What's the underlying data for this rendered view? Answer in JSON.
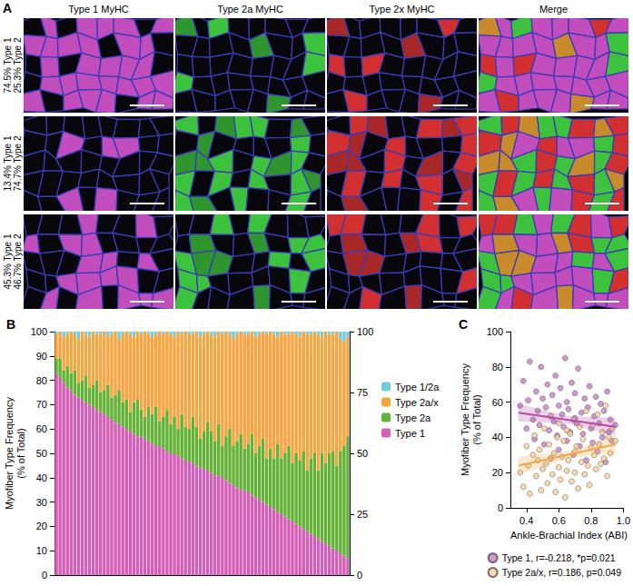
{
  "panel_a": {
    "letter": "A",
    "columns": [
      "Type 1 MyHC",
      "Type 2a MyHC",
      "Type 2x MyHC",
      "Merge"
    ],
    "rows": [
      [
        "74.5% Type 1",
        "25.3% Type 2"
      ],
      [
        "13.4% Type 1",
        "74.7% Type 2"
      ],
      [
        "45.3% Type 1",
        "46.7% Type 2"
      ]
    ]
  },
  "chart_data": [
    {
      "type": "bar",
      "title": "B",
      "y_label": "Myofiber Type Frequency (% of Total)",
      "stacked": true,
      "grid": false,
      "legend": "right",
      "tick_labels": "y",
      "categories": [
        null,
        null,
        null,
        null,
        null,
        null,
        null,
        null,
        null,
        null,
        null,
        null,
        null,
        null,
        null,
        null,
        null,
        null,
        null,
        null,
        null,
        null,
        null,
        null,
        null,
        null,
        null,
        null,
        null,
        null,
        null,
        null,
        null,
        null,
        null,
        null,
        null,
        null,
        null,
        null,
        null,
        null,
        null,
        null,
        null,
        null,
        null,
        null,
        null,
        null,
        null,
        null,
        null,
        null,
        null,
        null,
        null,
        null,
        null,
        null,
        null,
        null,
        null,
        null,
        null,
        null,
        null,
        null,
        null,
        null,
        null,
        null,
        null,
        null,
        null,
        null,
        null,
        null,
        null,
        null
      ],
      "ylim": [
        0,
        100
      ],
      "yticks": [
        0,
        10,
        20,
        30,
        40,
        50,
        60,
        70,
        80,
        90,
        100
      ],
      "y2lim": [
        0,
        100
      ],
      "y2ticks": [
        0,
        25,
        50,
        75,
        100
      ],
      "series": [
        {
          "name": "Type 1",
          "color": "#d35fb7",
          "values": [
            83,
            81,
            79,
            77,
            76,
            74,
            73,
            72,
            71,
            70,
            69,
            68,
            67,
            66,
            65,
            64,
            63,
            62,
            61,
            60,
            59,
            58,
            57,
            57,
            56,
            55,
            54,
            53,
            53,
            52,
            51,
            50,
            50,
            49,
            48,
            47,
            47,
            46,
            45,
            44,
            44,
            43,
            42,
            41,
            41,
            40,
            39,
            38,
            37,
            36,
            35,
            35,
            34,
            33,
            32,
            31,
            30,
            29,
            28,
            27,
            26,
            25,
            24,
            23,
            22,
            21,
            20,
            19,
            18,
            17,
            16,
            15,
            14,
            13,
            12,
            11,
            10,
            9,
            8,
            7
          ]
        },
        {
          "name": "Type 2a",
          "color": "#62b236",
          "values": [
            6,
            8,
            5,
            9,
            7,
            10,
            6,
            8,
            11,
            7,
            9,
            12,
            8,
            10,
            13,
            9,
            11,
            14,
            10,
            12,
            8,
            13,
            15,
            11,
            9,
            14,
            12,
            16,
            10,
            13,
            17,
            12,
            15,
            11,
            18,
            14,
            13,
            19,
            16,
            12,
            15,
            20,
            17,
            14,
            21,
            13,
            18,
            22,
            16,
            19,
            23,
            17,
            20,
            25,
            18,
            22,
            26,
            19,
            24,
            21,
            28,
            23,
            26,
            30,
            24,
            29,
            27,
            32,
            25,
            31,
            34,
            28,
            36,
            33,
            38,
            40,
            35,
            42,
            45,
            50
          ]
        },
        {
          "name": "Type 2a/x",
          "color": "#f7a541",
          "values": [
            10,
            11,
            14,
            13,
            17,
            15,
            18,
            20,
            17,
            21,
            22,
            19,
            24,
            24,
            20,
            26,
            26,
            21,
            28,
            28,
            32,
            27,
            28,
            31,
            35,
            30,
            32,
            30,
            37,
            34,
            32,
            37,
            33,
            40,
            33,
            39,
            39,
            34,
            39,
            42,
            40,
            37,
            40,
            43,
            38,
            46,
            43,
            39,
            44,
            44,
            42,
            47,
            45,
            42,
            48,
            46,
            44,
            51,
            48,
            51,
            44,
            52,
            49,
            46,
            54,
            49,
            51,
            49,
            56,
            51,
            50,
            56,
            48,
            54,
            49,
            48,
            55,
            46,
            43,
            41
          ]
        },
        {
          "name": "Type 1/2a",
          "color": "#70cde0",
          "values": [
            1,
            0,
            2,
            1,
            0,
            1,
            3,
            0,
            1,
            2,
            0,
            1,
            1,
            0,
            2,
            1,
            0,
            3,
            1,
            0,
            1,
            2,
            0,
            1,
            0,
            1,
            2,
            1,
            0,
            1,
            0,
            1,
            2,
            0,
            1,
            0,
            1,
            1,
            0,
            2,
            1,
            0,
            1,
            2,
            0,
            1,
            0,
            1,
            3,
            1,
            0,
            1,
            1,
            0,
            2,
            1,
            0,
            1,
            0,
            1,
            2,
            0,
            1,
            1,
            0,
            1,
            2,
            0,
            1,
            1,
            0,
            1,
            2,
            0,
            1,
            1,
            0,
            3,
            4,
            2
          ]
        }
      ]
    },
    {
      "type": "scatter",
      "title": "C",
      "x_label": "Ankle-Brachial Index (ABI)",
      "y_label": "Myofiber Type Frequency (% of Total)",
      "grid": false,
      "legend": "bottom",
      "xlim": [
        0.3,
        1.0
      ],
      "xticks": [
        0.4,
        0.6,
        0.8,
        {
          "value": 1,
          "label": "1.0"
        }
      ],
      "ylim": [
        0,
        100
      ],
      "yticks": [
        0,
        20,
        40,
        60,
        80,
        100
      ],
      "x": [
        0.36,
        0.38,
        0.4,
        0.41,
        0.42,
        0.44,
        0.45,
        0.46,
        0.47,
        0.48,
        0.49,
        0.5,
        0.51,
        0.52,
        0.53,
        0.54,
        0.55,
        0.55,
        0.56,
        0.57,
        0.58,
        0.59,
        0.6,
        0.6,
        0.61,
        0.62,
        0.63,
        0.64,
        0.65,
        0.65,
        0.66,
        0.67,
        0.68,
        0.69,
        0.7,
        0.7,
        0.71,
        0.72,
        0.73,
        0.74,
        0.75,
        0.76,
        0.77,
        0.78,
        0.79,
        0.8,
        0.81,
        0.82,
        0.83,
        0.84,
        0.85,
        0.86,
        0.87,
        0.88,
        0.89,
        0.9,
        0.91,
        0.92,
        0.93,
        0.95
      ],
      "series": [
        {
          "name": "Type 1, r=-0.218, *p=0.021",
          "color": "#c77fc4",
          "marker": "circle",
          "values": [
            58,
            72,
            45,
            61,
            83,
            50,
            39,
            66,
            55,
            47,
            80,
            62,
            36,
            57,
            70,
            44,
            52,
            28,
            64,
            49,
            75,
            41,
            58,
            33,
            68,
            53,
            46,
            85,
            38,
            60,
            56,
            43,
            71,
            30,
            51,
            65,
            48,
            79,
            35,
            54,
            42,
            62,
            27,
            57,
            69,
            45,
            37,
            52,
            63,
            32,
            48,
            59,
            40,
            55,
            26,
            66,
            43,
            50,
            38,
            47
          ],
          "fit": {
            "type": "line",
            "color": "#b54aa8",
            "x": [
              0.35,
              0.65,
              0.95
            ],
            "values": [
              54,
              50,
              46
            ],
            "lower": [
              49,
              48,
              41
            ],
            "upper": [
              59,
              52,
              51
            ]
          }
        },
        {
          "name": "Type 2a/x, r=0.186, p=0.049",
          "color": "#f8cf98",
          "marker": "circle",
          "values": [
            20,
            12,
            35,
            24,
            8,
            30,
            41,
            18,
            27,
            33,
            10,
            22,
            45,
            25,
            14,
            36,
            28,
            52,
            19,
            31,
            9,
            40,
            23,
            48,
            16,
            29,
            38,
            6,
            44,
            21,
            27,
            42,
            15,
            50,
            32,
            20,
            35,
            11,
            46,
            26,
            39,
            19,
            55,
            24,
            13,
            34,
            47,
            30,
            22,
            53,
            36,
            25,
            43,
            28,
            58,
            18,
            40,
            31,
            45,
            38
          ],
          "fit": {
            "type": "line",
            "color": "#f0a848",
            "x": [
              0.35,
              0.65,
              0.95
            ],
            "values": [
              24,
              30,
              36
            ],
            "lower": [
              19,
              28,
              31
            ],
            "upper": [
              29,
              32,
              41
            ]
          }
        }
      ]
    }
  ]
}
